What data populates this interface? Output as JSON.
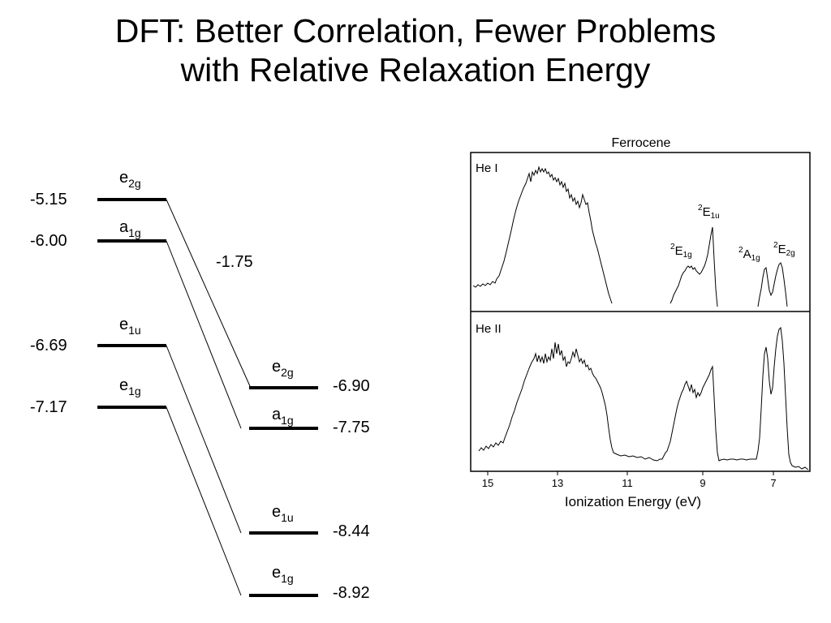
{
  "title": {
    "line1": "DFT: Better Correlation, Fewer Problems",
    "line2": "with Relative Relaxation Energy"
  },
  "diagram": {
    "shift_label": "-1.75",
    "left_levels": [
      {
        "label": "e",
        "sub": "2g",
        "value": "-5.15"
      },
      {
        "label": "a",
        "sub": "1g",
        "value": "-6.00"
      },
      {
        "label": "e",
        "sub": "1u",
        "value": "-6.69"
      },
      {
        "label": "e",
        "sub": "1g",
        "value": "-7.17"
      }
    ],
    "right_levels": [
      {
        "label": "e",
        "sub": "2g",
        "value": "-6.90"
      },
      {
        "label": "a",
        "sub": "1g",
        "value": "-7.75"
      },
      {
        "label": "e",
        "sub": "1u",
        "value": "-8.44"
      },
      {
        "label": "e",
        "sub": "1g",
        "value": "-8.92"
      }
    ]
  },
  "spectrum": {
    "title": "Ferrocene",
    "top_panel_label": "He I",
    "bottom_panel_label": "He II",
    "xlabel": "Ionization Energy (eV)",
    "x_ticks": [
      "15",
      "13",
      "11",
      "9",
      "7"
    ],
    "peak_labels": [
      {
        "sup": "2",
        "main": "E",
        "sub": "1u"
      },
      {
        "sup": "2",
        "main": "E",
        "sub": "1g"
      },
      {
        "sup": "2",
        "main": "A",
        "sub": "1g"
      },
      {
        "sup": "2",
        "main": "E",
        "sub": "2g"
      }
    ]
  }
}
